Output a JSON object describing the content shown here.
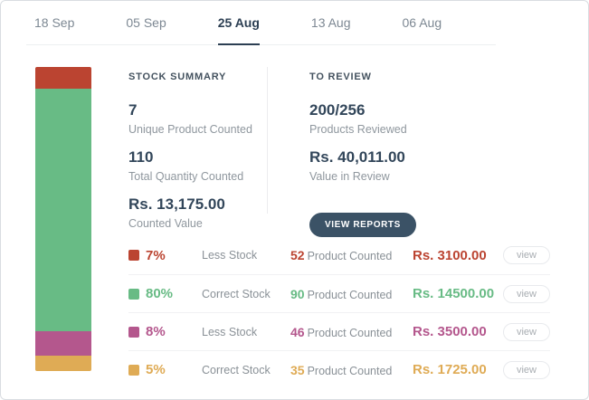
{
  "tabs": [
    {
      "label": "18 Sep",
      "active": false
    },
    {
      "label": "05 Sep",
      "active": false
    },
    {
      "label": "25 Aug",
      "active": true
    },
    {
      "label": "13 Aug",
      "active": false
    },
    {
      "label": "06 Aug",
      "active": false
    }
  ],
  "stock_summary": {
    "title": "STOCK SUMMARY",
    "stats": [
      {
        "value": "7",
        "label": "Unique Product Counted"
      },
      {
        "value": "110",
        "label": "Total Quantity Counted"
      },
      {
        "value": "Rs. 13,175.00",
        "label": "Counted Value"
      }
    ]
  },
  "to_review": {
    "title": "TO REVIEW",
    "stats": [
      {
        "value": "200/256",
        "label": "Products Reviewed"
      },
      {
        "value": "Rs. 40,011.00",
        "label": "Value in Review"
      }
    ],
    "button_label": "VIEW REPORTS"
  },
  "rows": [
    {
      "percent": "7%",
      "status": "Less Stock",
      "count": "52",
      "count_label": "Product Counted",
      "value": "Rs. 3100.00",
      "action_label": "view",
      "color": "#bb4431"
    },
    {
      "percent": "80%",
      "status": "Correct Stock",
      "count": "90",
      "count_label": "Product Counted",
      "value": "Rs. 14500.00",
      "action_label": "view",
      "color": "#68bb85"
    },
    {
      "percent": "8%",
      "status": "Less Stock",
      "count": "46",
      "count_label": "Product Counted",
      "value": "Rs. 3500.00",
      "action_label": "view",
      "color": "#b4578d"
    },
    {
      "percent": "5%",
      "status": "Correct Stock",
      "count": "35",
      "count_label": "Product Counted",
      "value": "Rs. 1725.00",
      "action_label": "view",
      "color": "#dfab55"
    }
  ],
  "chart_data": {
    "type": "bar",
    "stacked": true,
    "orientation": "vertical",
    "title": "",
    "segments": [
      {
        "name": "less-stock-red",
        "value": 7,
        "color": "#bb4431"
      },
      {
        "name": "correct-stock-green",
        "value": 80,
        "color": "#68bb85"
      },
      {
        "name": "less-stock-magenta",
        "value": 8,
        "color": "#b4578d"
      },
      {
        "name": "correct-stock-orange",
        "value": 5,
        "color": "#dfab55"
      }
    ]
  },
  "colors": {
    "accent_dark": "#2c3f53",
    "button_bg": "#3b5266",
    "text_muted": "#8f979e",
    "divider": "#ececee"
  }
}
